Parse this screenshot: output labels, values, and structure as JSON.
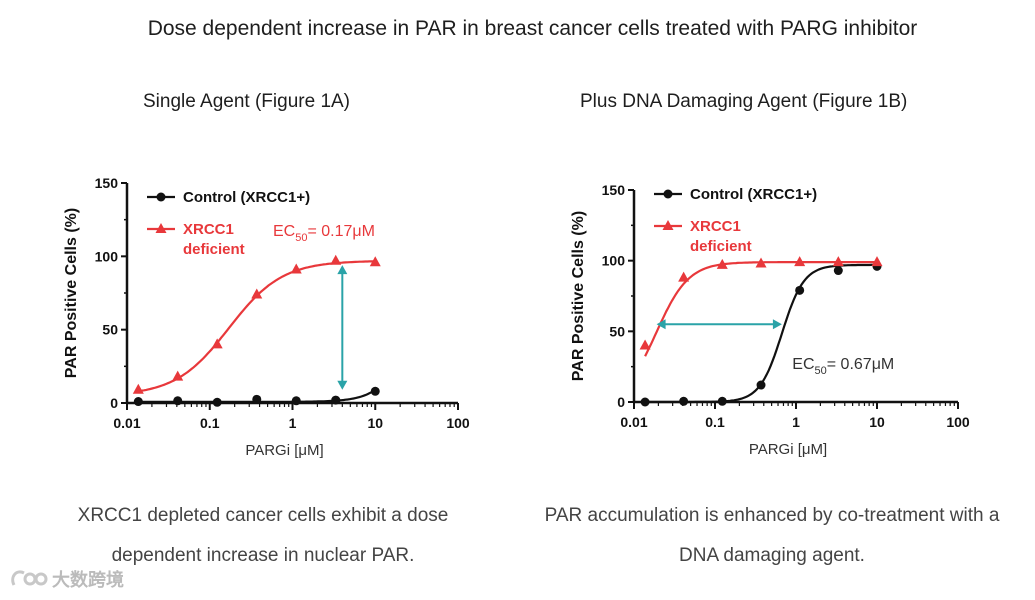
{
  "title": "Dose dependent increase in PAR in breast cancer cells treated with PARG inhibitor",
  "panels": [
    {
      "title": "Single Agent (Figure 1A)",
      "caption": "XRCC1 depleted cancer cells exhibit a dose dependent increase in nuclear PAR."
    },
    {
      "title": "Plus DNA Damaging Agent (Figure 1B)",
      "caption": "PAR accumulation is enhanced by co-treatment with a DNA damaging agent."
    }
  ],
  "watermark": "大数跨境",
  "colors": {
    "control": "#111111",
    "xrcc1": "#e8383b",
    "arrow": "#2aa3a8"
  },
  "chart_data": [
    {
      "type": "scatter",
      "title": "Single Agent (Figure 1A)",
      "xlabel": "PARGi [μM]",
      "ylabel": "PAR Positive Cells (%)",
      "xscale": "log",
      "xlim": [
        0.01,
        100
      ],
      "ylim": [
        0,
        150
      ],
      "xticks": [
        0.01,
        0.1,
        1,
        10,
        100
      ],
      "xtick_labels": [
        "0.01",
        "0.1",
        "1",
        "10",
        "100"
      ],
      "yticks": [
        0,
        50,
        100,
        150
      ],
      "ytick_labels": [
        "0",
        "50",
        "100",
        "150"
      ],
      "legend_position": "top-left",
      "series": [
        {
          "name": "Control (XRCC1+)",
          "marker": "circle",
          "color": "#111111",
          "x": [
            0.0137,
            0.041,
            0.123,
            0.37,
            1.11,
            3.33,
            10
          ],
          "y": [
            1,
            1.5,
            0.5,
            2.5,
            1.5,
            2,
            8
          ],
          "fit": {
            "bottom": 0.8,
            "top": 100,
            "ec50": 30,
            "hill": 2.2
          }
        },
        {
          "name": "XRCC1 deficient",
          "legend_lines": [
            "XRCC1",
            "deficient"
          ],
          "marker": "triangle",
          "color": "#e8383b",
          "x": [
            0.0137,
            0.041,
            0.123,
            0.37,
            1.11,
            3.33,
            10
          ],
          "y": [
            9,
            18,
            40,
            74,
            91,
            97,
            96
          ],
          "fit": {
            "bottom": 5,
            "top": 97,
            "ec50": 0.17,
            "hill": 1.35
          }
        }
      ],
      "annotations": [
        {
          "type": "ec50",
          "text_main": "EC",
          "text_sub": "50",
          "text_tail": "= 0.17μM",
          "color": "#e8383b",
          "placement": "upper-right"
        },
        {
          "type": "double-arrow",
          "orientation": "vertical",
          "x": 4,
          "y_from": 9,
          "y_to": 94,
          "color": "#2aa3a8"
        }
      ]
    },
    {
      "type": "scatter",
      "title": "Plus DNA Damaging Agent (Figure 1B)",
      "xlabel": "PARGi [μM]",
      "ylabel": "PAR Positive Cells (%)",
      "xscale": "log",
      "xlim": [
        0.01,
        100
      ],
      "ylim": [
        0,
        150
      ],
      "xticks": [
        0.01,
        0.1,
        1,
        10,
        100
      ],
      "xtick_labels": [
        "0.01",
        "0.1",
        "1",
        "10",
        "100"
      ],
      "yticks": [
        0,
        50,
        100,
        150
      ],
      "ytick_labels": [
        "0",
        "50",
        "100",
        "150"
      ],
      "legend_position": "top-left",
      "series": [
        {
          "name": "Control (XRCC1+)",
          "marker": "circle",
          "color": "#111111",
          "x": [
            0.0137,
            0.041,
            0.123,
            0.37,
            1.11,
            3.33,
            10
          ],
          "y": [
            0,
            0.5,
            0.5,
            12,
            79,
            93,
            96
          ],
          "fit": {
            "bottom": 0,
            "top": 97,
            "ec50": 0.67,
            "hill": 3.2
          }
        },
        {
          "name": "XRCC1 deficient",
          "legend_lines": [
            "XRCC1",
            "deficient"
          ],
          "marker": "triangle",
          "color": "#e8383b",
          "x": [
            0.0137,
            0.041,
            0.123,
            0.37,
            1.11,
            3.33,
            10
          ],
          "y": [
            40,
            88,
            97,
            98,
            99,
            99,
            99
          ],
          "fit": {
            "bottom": 0,
            "top": 99,
            "ec50": 0.019,
            "hill": 2.2
          }
        }
      ],
      "annotations": [
        {
          "type": "ec50",
          "text_main": "EC",
          "text_sub": "50",
          "text_tail": "= 0.67μM",
          "color": "#333333",
          "placement": "center-right"
        },
        {
          "type": "double-arrow",
          "orientation": "horizontal",
          "y": 55,
          "x_from": 0.019,
          "x_to": 0.67,
          "color": "#2aa3a8"
        }
      ]
    }
  ]
}
